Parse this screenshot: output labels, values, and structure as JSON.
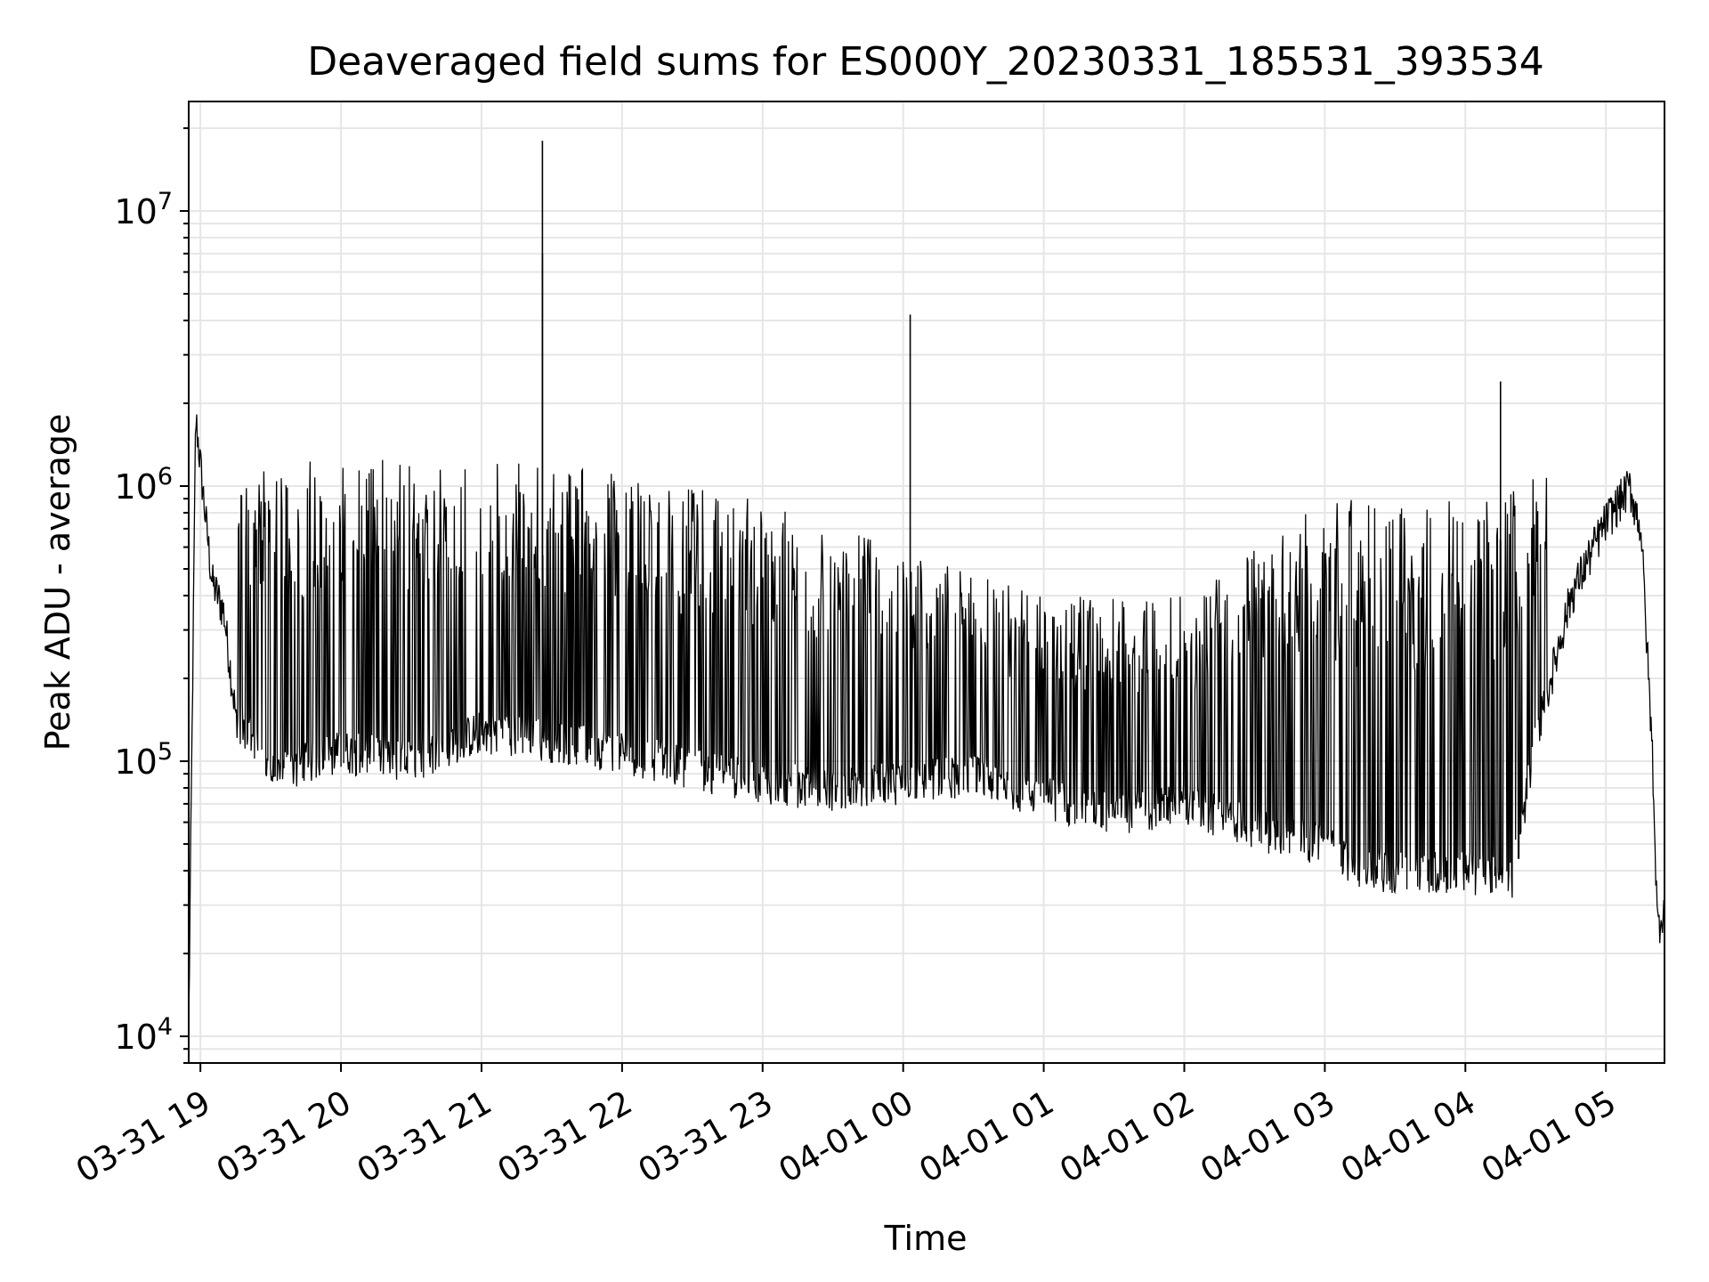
{
  "chart_data": {
    "type": "line",
    "title": "Deaveraged field sums for ES000Y_20230331_185531_393534",
    "xlabel": "Time",
    "ylabel": "Peak ADU - average",
    "yscale": "log",
    "ylim": [
      8000,
      25000000
    ],
    "xlim": [
      "2023-03-31 18:55",
      "2023-04-01 05:25"
    ],
    "grid": true,
    "line_color": "#000000",
    "grid_color": "#e6e6e6",
    "x_ticks": [
      {
        "value": "2023-03-31 19:00",
        "label": "03-31 19"
      },
      {
        "value": "2023-03-31 20:00",
        "label": "03-31 20"
      },
      {
        "value": "2023-03-31 21:00",
        "label": "03-31 21"
      },
      {
        "value": "2023-03-31 22:00",
        "label": "03-31 22"
      },
      {
        "value": "2023-03-31 23:00",
        "label": "03-31 23"
      },
      {
        "value": "2023-04-01 00:00",
        "label": "04-01 00"
      },
      {
        "value": "2023-04-01 01:00",
        "label": "04-01 01"
      },
      {
        "value": "2023-04-01 02:00",
        "label": "04-01 02"
      },
      {
        "value": "2023-04-01 03:00",
        "label": "04-01 03"
      },
      {
        "value": "2023-04-01 04:00",
        "label": "04-01 04"
      },
      {
        "value": "2023-04-01 05:00",
        "label": "04-01 05"
      }
    ],
    "y_ticks": [
      {
        "value": 10000,
        "base": "10",
        "exp": "4"
      },
      {
        "value": 100000,
        "base": "10",
        "exp": "5"
      },
      {
        "value": 1000000,
        "base": "10",
        "exp": "6"
      },
      {
        "value": 10000000,
        "base": "10",
        "exp": "7"
      }
    ],
    "series": [
      {
        "points": [
          [
            "2023-03-31 18:55",
            11000
          ],
          [
            "2023-03-31 18:58",
            1800000
          ],
          [
            "2023-03-31 19:00",
            1200000
          ],
          [
            "2023-03-31 19:02",
            800000
          ],
          [
            "2023-03-31 19:05",
            450000
          ],
          [
            "2023-03-31 19:10",
            350000
          ],
          [
            "2023-03-31 19:15",
            150000
          ],
          [
            "2023-03-31 19:30",
            90000
          ],
          [
            "2023-03-31 20:00",
            110000
          ],
          [
            "2023-03-31 20:30",
            100000
          ],
          [
            "2023-03-31 21:00",
            130000
          ],
          [
            "2023-03-31 21:30",
            120000
          ],
          [
            "2023-03-31 22:00",
            110000
          ],
          [
            "2023-03-31 22:30",
            95000
          ],
          [
            "2023-03-31 23:00",
            85000
          ],
          [
            "2023-03-31 23:30",
            80000
          ],
          [
            "2023-04-01 00:00",
            85000
          ],
          [
            "2023-04-01 00:30",
            90000
          ],
          [
            "2023-04-01 01:00",
            75000
          ],
          [
            "2023-04-01 01:30",
            65000
          ],
          [
            "2023-04-01 02:00",
            70000
          ],
          [
            "2023-04-01 02:30",
            58000
          ],
          [
            "2023-04-01 03:00",
            50000
          ],
          [
            "2023-04-01 03:15",
            42000
          ],
          [
            "2023-04-01 03:30",
            40000
          ],
          [
            "2023-04-01 04:00",
            40000
          ],
          [
            "2023-04-01 04:20",
            38000
          ],
          [
            "2023-04-01 04:30",
            120000
          ],
          [
            "2023-04-01 04:45",
            400000
          ],
          [
            "2023-04-01 05:00",
            750000
          ],
          [
            "2023-04-01 05:10",
            1000000
          ],
          [
            "2023-04-01 05:15",
            700000
          ],
          [
            "2023-04-01 05:20",
            100000
          ],
          [
            "2023-04-01 05:22",
            25000
          ],
          [
            "2023-04-01 05:25",
            30000
          ]
        ],
        "upper_envelope": [
          [
            "2023-03-31 19:15",
            1100000
          ],
          [
            "2023-03-31 20:00",
            1300000
          ],
          [
            "2023-03-31 21:00",
            1300000
          ],
          [
            "2023-03-31 22:00",
            1100000
          ],
          [
            "2023-03-31 23:00",
            900000
          ],
          [
            "2023-04-01 00:00",
            600000
          ],
          [
            "2023-04-01 01:00",
            400000
          ],
          [
            "2023-04-01 02:00",
            400000
          ],
          [
            "2023-04-01 03:00",
            900000
          ],
          [
            "2023-04-01 04:00",
            900000
          ],
          [
            "2023-04-01 04:35",
            1100000
          ]
        ],
        "spikes": [
          [
            "2023-03-31 21:26",
            18000000
          ],
          [
            "2023-03-31 21:26",
            7000000
          ],
          [
            "2023-04-01 00:03",
            4200000
          ],
          [
            "2023-04-01 04:15",
            2400000
          ]
        ]
      }
    ]
  }
}
